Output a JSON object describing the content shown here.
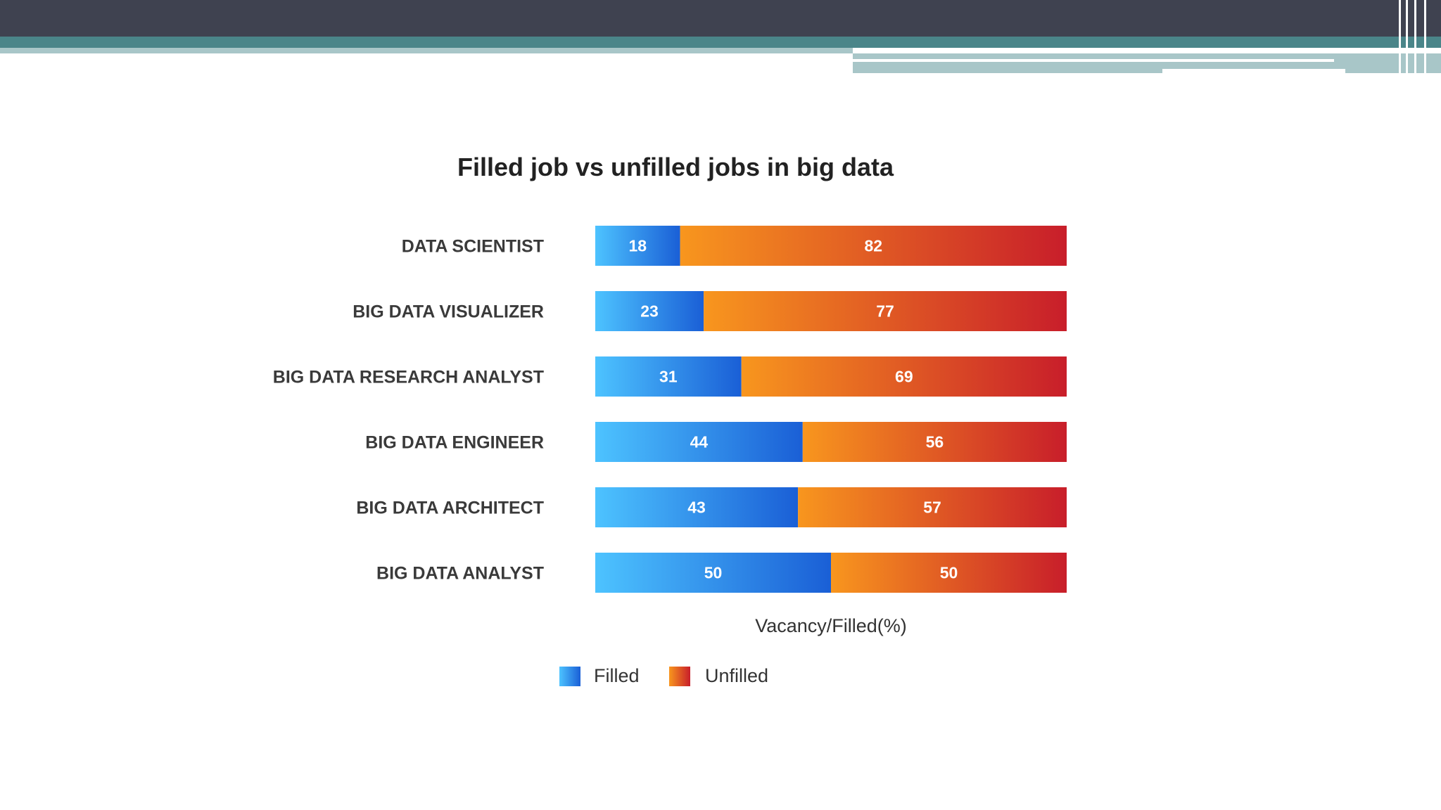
{
  "colors": {
    "header_dark": "#3f4250",
    "header_teal": "#4a8589",
    "header_light": "#a8c6c8",
    "filled_start": "#4dc3ff",
    "filled_end": "#1a5fd6",
    "unfilled_start": "#f8961e",
    "unfilled_end": "#c81e2a"
  },
  "chart_data": {
    "type": "bar",
    "orientation": "horizontal",
    "stacked": true,
    "title": "Filled job vs unfilled jobs in big data",
    "xlabel": "Vacancy/Filled(%)",
    "ylabel": "",
    "xlim": [
      0,
      100
    ],
    "grid": false,
    "legend_position": "bottom",
    "categories": [
      "DATA SCIENTIST",
      "BIG DATA VISUALIZER",
      "BIG DATA RESEARCH ANALYST",
      "BIG DATA ENGINEER",
      "BIG DATA ARCHITECT",
      "BIG DATA ANALYST"
    ],
    "series": [
      {
        "name": "Filled",
        "values": [
          18,
          23,
          31,
          44,
          43,
          50
        ]
      },
      {
        "name": "Unfilled",
        "values": [
          82,
          77,
          69,
          56,
          57,
          50
        ]
      }
    ]
  }
}
